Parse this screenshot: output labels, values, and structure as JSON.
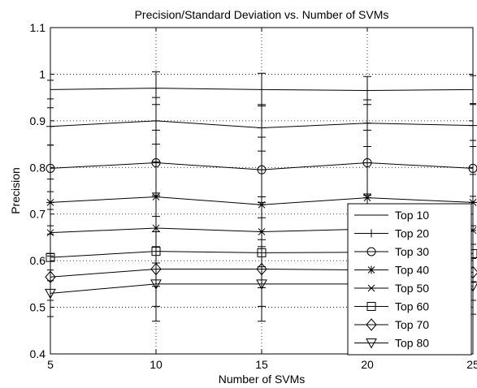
{
  "chart_data": {
    "type": "line",
    "title": "Precision/Standard Deviation vs. Number of SVMs",
    "xlabel": "Number of SVMs",
    "ylabel": "Precision",
    "xlim": [
      5,
      25
    ],
    "ylim": [
      0.4,
      1.1
    ],
    "x": [
      5,
      10,
      15,
      20,
      25
    ],
    "x_ticks": [
      "5",
      "10",
      "15",
      "20",
      "25"
    ],
    "y_ticks": [
      "0.4",
      "0.5",
      "0.6",
      "0.7",
      "0.8",
      "0.9",
      "1",
      "1.1"
    ],
    "grid": true,
    "legend_position": "bottom-right",
    "series": [
      {
        "name": "Top 10",
        "marker": "none",
        "values": [
          0.967,
          0.97,
          0.967,
          0.965,
          0.967
        ],
        "err": [
          0.02,
          0.035,
          0.035,
          0.03,
          0.03
        ]
      },
      {
        "name": "Top 20",
        "marker": "plus",
        "values": [
          0.888,
          0.9,
          0.885,
          0.895,
          0.89
        ],
        "err": [
          0.04,
          0.05,
          0.05,
          0.05,
          0.045
        ]
      },
      {
        "name": "Top 30",
        "marker": "circle",
        "values": [
          0.798,
          0.81,
          0.795,
          0.81,
          0.798
        ],
        "err": [
          0.05,
          0.07,
          0.07,
          0.07,
          0.06
        ]
      },
      {
        "name": "Top 40",
        "marker": "asterisk",
        "values": [
          0.725,
          0.737,
          0.72,
          0.735,
          0.725
        ],
        "err": [
          0.05,
          0.075,
          0.075,
          0.075,
          0.06
        ]
      },
      {
        "name": "Top 50",
        "marker": "cross",
        "values": [
          0.66,
          0.67,
          0.662,
          0.668,
          0.665
        ],
        "err": [
          0.05,
          0.075,
          0.075,
          0.075,
          0.06
        ]
      },
      {
        "name": "Top 60",
        "marker": "square",
        "values": [
          0.607,
          0.62,
          0.617,
          0.618,
          0.615
        ],
        "err": [
          0.05,
          0.075,
          0.075,
          0.075,
          0.06
        ]
      },
      {
        "name": "Top 70",
        "marker": "diamond",
        "values": [
          0.565,
          0.582,
          0.582,
          0.58,
          0.575
        ],
        "err": [
          0.05,
          0.08,
          0.08,
          0.08,
          0.06
        ]
      },
      {
        "name": "Top 80",
        "marker": "triangle-down",
        "values": [
          0.53,
          0.55,
          0.55,
          0.55,
          0.545
        ],
        "err": [
          0.05,
          0.08,
          0.08,
          0.08,
          0.06
        ]
      }
    ]
  }
}
